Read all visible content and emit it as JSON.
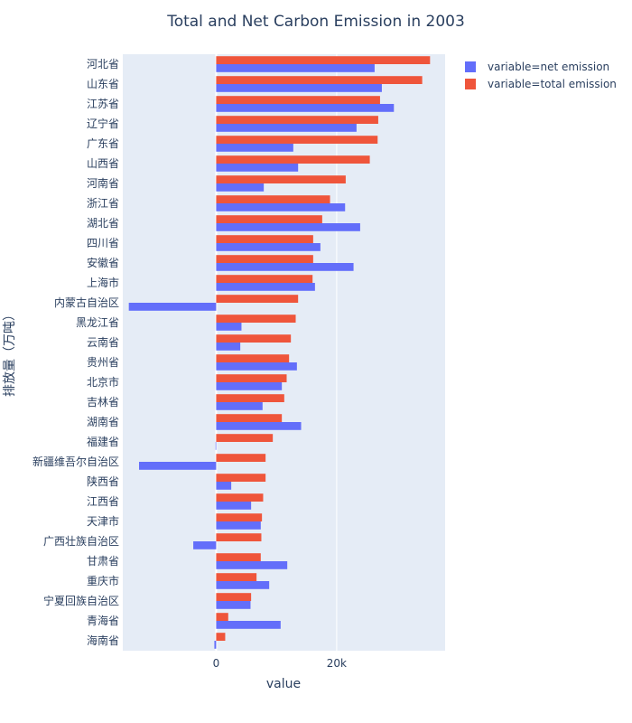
{
  "chart_data": {
    "type": "bar",
    "orientation": "horizontal",
    "barmode": "group",
    "title": "Total and Net Carbon Emission in 2003",
    "xlabel": "value",
    "ylabel": "排放量（万吨）",
    "xlim": [
      -15500,
      38000
    ],
    "x_ticks": [
      {
        "value": 0,
        "label": "0"
      },
      {
        "value": 20000,
        "label": "20k"
      }
    ],
    "grid": true,
    "legend_position": "top-right",
    "categories": [
      "河北省",
      "山东省",
      "江苏省",
      "辽宁省",
      "广东省",
      "山西省",
      "河南省",
      "浙江省",
      "湖北省",
      "四川省",
      "安徽省",
      "上海市",
      "内蒙古自治区",
      "黑龙江省",
      "云南省",
      "贵州省",
      "北京市",
      "吉林省",
      "湖南省",
      "福建省",
      "新疆维吾尔自治区",
      "陕西省",
      "江西省",
      "天津市",
      "广西壮族自治区",
      "甘肃省",
      "重庆市",
      "宁夏回族自治区",
      "青海省",
      "海南省"
    ],
    "series": [
      {
        "name": "variable=net emission",
        "color": "#636efa",
        "values": [
          26300,
          27500,
          29500,
          23300,
          12800,
          13600,
          7900,
          21400,
          23900,
          17300,
          22800,
          16400,
          -14500,
          4200,
          4000,
          13400,
          10900,
          7700,
          14100,
          -100,
          -12800,
          2500,
          5800,
          7400,
          -3800,
          11800,
          8800,
          5700,
          10700,
          -300
        ]
      },
      {
        "name": "variable=total emission",
        "color": "#ef553b",
        "values": [
          35500,
          34200,
          27200,
          26900,
          26800,
          25500,
          21500,
          18900,
          17600,
          16100,
          16100,
          16000,
          13600,
          13200,
          12400,
          12100,
          11700,
          11300,
          10900,
          9400,
          8200,
          8200,
          7800,
          7600,
          7500,
          7400,
          6700,
          5800,
          2000,
          1500
        ]
      }
    ]
  }
}
